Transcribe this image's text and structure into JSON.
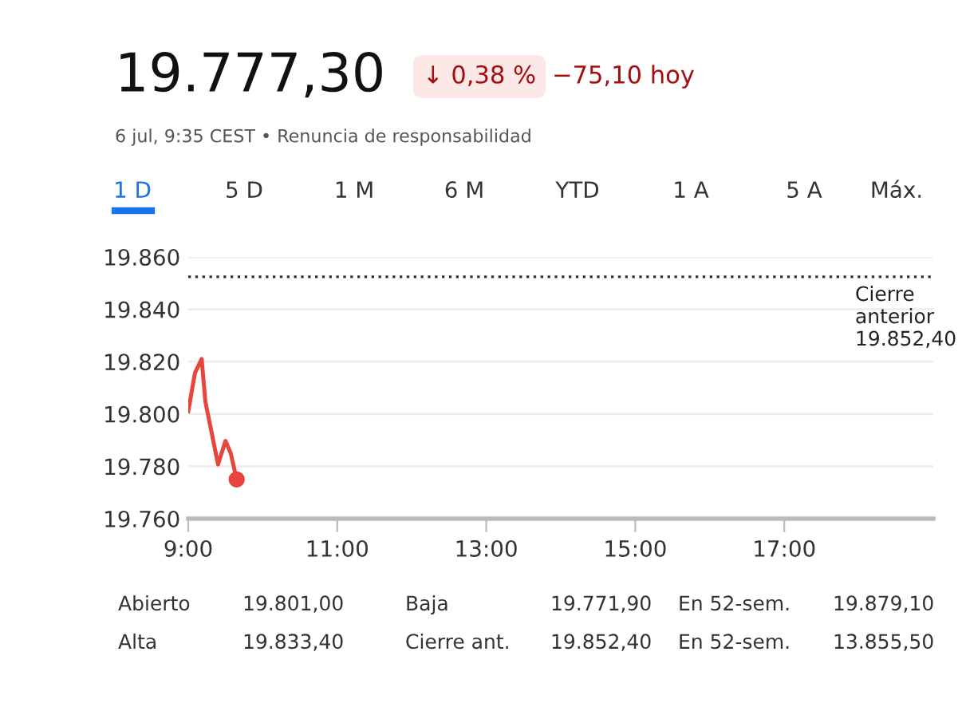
{
  "chart_data": {
    "type": "line",
    "x": [
      9.0,
      9.09,
      9.18,
      9.23,
      9.4,
      9.5,
      9.57,
      9.65
    ],
    "series": [
      {
        "color": "#e8453c",
        "values": [
          19801,
          19815.7,
          19821,
          19804.7,
          19780.7,
          19789.7,
          19785,
          19775
        ]
      }
    ],
    "xlim": [
      9,
      19
    ],
    "xticks": [
      {
        "value": 9,
        "label": "9:00"
      },
      {
        "value": 11,
        "label": "11:00"
      },
      {
        "value": 13,
        "label": "13:00"
      },
      {
        "value": 15,
        "label": "15:00"
      },
      {
        "value": 17,
        "label": "17:00"
      }
    ],
    "ylim": [
      19760,
      19860
    ],
    "yticks": [
      {
        "value": 19760,
        "label": "19.760"
      },
      {
        "value": 19780,
        "label": "19.780"
      },
      {
        "value": 19800,
        "label": "19.800"
      },
      {
        "value": 19820,
        "label": "19.820"
      },
      {
        "value": 19840,
        "label": "19.840"
      },
      {
        "value": 19860,
        "label": "19.860"
      }
    ],
    "ref_lines": [
      {
        "axis": "y",
        "value": 19852.4,
        "label": "Cierre\nanterior\n19.852,40",
        "color": "#333333",
        "line_style": "dotted"
      }
    ],
    "grid": "y",
    "line_style": "solid",
    "annotations": [
      "19.777,30",
      "↓ 0,38 %",
      "−75,10 hoy",
      "6 jul, 9:35 CEST • Renuncia de responsabilidad",
      "1 D",
      "5 D",
      "1 M",
      "6 M",
      "YTD",
      "1 A",
      "5 A",
      "Máx.",
      "Abierto",
      "19.801,00",
      "Baja",
      "19.771,90",
      "En 52-sem.",
      "19.879,10",
      "Alta",
      "19.833,40",
      "Cierre ant.",
      "19.852,40",
      "En 52-sem.",
      "13.855,50"
    ]
  }
}
